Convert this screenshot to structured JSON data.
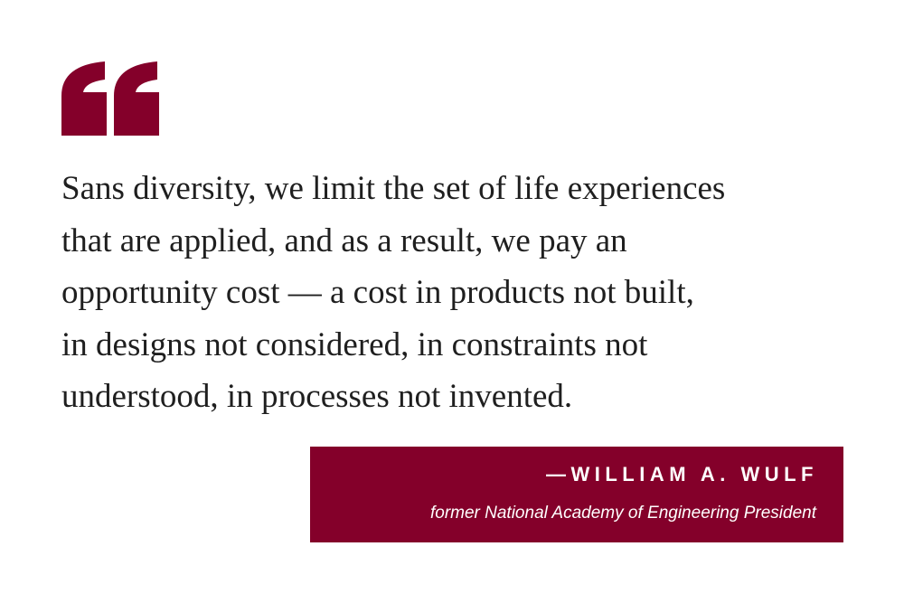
{
  "quote": {
    "lines": [
      "Sans diversity, we limit the set of life experiences",
      "that are applied, and as a result, we pay an",
      "opportunity cost — a cost in products not built,",
      "in designs not considered, in constraints not",
      "understood, in processes not invented."
    ]
  },
  "attribution": {
    "name": "—WILLIAM A. WULF",
    "role": "former National Academy of Engineering President"
  }
}
